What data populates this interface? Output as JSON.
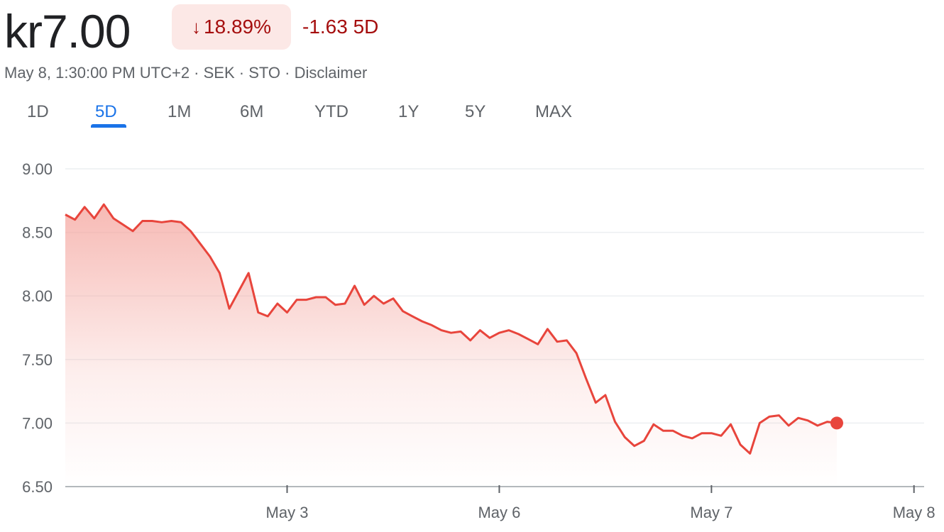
{
  "header": {
    "price": "kr7.00",
    "change_pct": "18.89%",
    "change_abs": "-1.63 5D",
    "meta": [
      "May 8, 1:30:00 PM UTC+2",
      "SEK",
      "STO",
      "Disclaimer"
    ]
  },
  "tabs": [
    {
      "label": "1D",
      "active": false
    },
    {
      "label": "5D",
      "active": true
    },
    {
      "label": "1M",
      "active": false
    },
    {
      "label": "6M",
      "active": false
    },
    {
      "label": "YTD",
      "active": false
    },
    {
      "label": "1Y",
      "active": false
    },
    {
      "label": "5Y",
      "active": false
    },
    {
      "label": "MAX",
      "active": false
    }
  ],
  "colors": {
    "line": "#e8453c",
    "accent": "#1a73e8",
    "negative": "#a50e0e"
  },
  "chart_data": {
    "type": "area",
    "ylim": [
      6.5,
      9.0
    ],
    "yticks": [
      "9.00",
      "8.50",
      "8.00",
      "7.50",
      "7.00",
      "6.50"
    ],
    "yvalues": [
      9.0,
      8.5,
      8.0,
      7.5,
      7.0,
      6.5
    ],
    "x_tick_labels": [
      {
        "label": "May 3",
        "index": 23
      },
      {
        "label": "May 6",
        "index": 45
      },
      {
        "label": "May 7",
        "index": 67
      },
      {
        "label": "May 8",
        "index": 88
      }
    ],
    "grid": true,
    "series": [
      {
        "values": [
          8.64,
          8.6,
          8.7,
          8.61,
          8.72,
          8.61,
          8.56,
          8.51,
          8.59,
          8.59,
          8.58,
          8.59,
          8.58,
          8.51,
          8.41,
          8.31,
          8.18,
          7.9,
          8.04,
          8.18,
          7.87,
          7.84,
          7.94,
          7.87,
          7.97,
          7.97,
          7.99,
          7.99,
          7.93,
          7.94,
          8.08,
          7.93,
          8.0,
          7.94,
          7.98,
          7.88,
          7.84,
          7.8,
          7.77,
          7.73,
          7.71,
          7.72,
          7.65,
          7.73,
          7.67,
          7.71,
          7.73,
          7.7,
          7.66,
          7.62,
          7.74,
          7.64,
          7.65,
          7.55,
          7.35,
          7.16,
          7.22,
          7.01,
          6.89,
          6.82,
          6.86,
          6.99,
          6.94,
          6.94,
          6.9,
          6.88,
          6.92,
          6.92,
          6.9,
          6.99,
          6.83,
          6.76,
          7.0,
          7.05,
          7.06,
          6.98,
          7.04,
          7.02,
          6.98,
          7.01,
          7.0
        ]
      }
    ]
  }
}
